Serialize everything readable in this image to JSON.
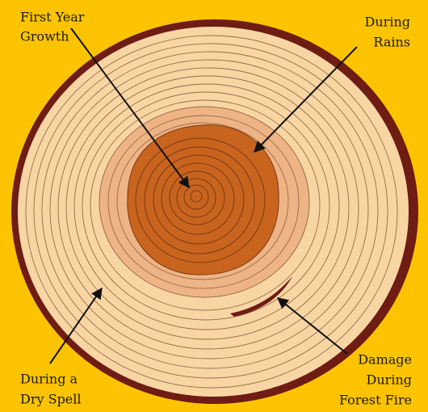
{
  "labels": [
    {
      "lines": [
        "First Year",
        "Growth"
      ]
    },
    {
      "lines": [
        "During",
        "Rains"
      ]
    },
    {
      "lines": [
        "During a",
        "Dry Spell"
      ]
    },
    {
      "lines": [
        "Damage",
        "During",
        "Forest Fire"
      ]
    }
  ]
}
